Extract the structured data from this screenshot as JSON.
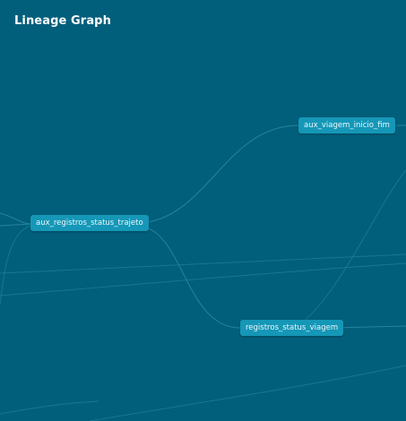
{
  "header": {
    "title": "Lineage Graph"
  },
  "graph": {
    "nodes": [
      {
        "id": "n1",
        "label": "aux_viagem_inicio_fim"
      },
      {
        "id": "n2",
        "label": "aux_registros_status_trajeto"
      },
      {
        "id": "n3",
        "label": "registros_status_viagem"
      }
    ]
  },
  "colors": {
    "background": "#025f7b",
    "node_fill": "#1597b7",
    "edge": "#2b8aa3",
    "title": "#ffffff"
  }
}
